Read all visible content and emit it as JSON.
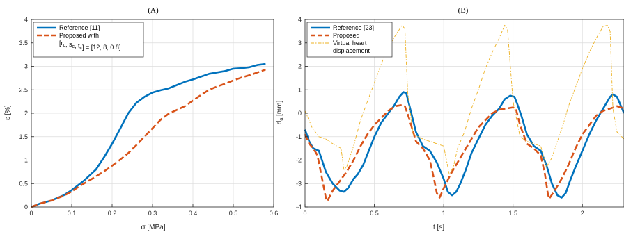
{
  "chart_data": [
    {
      "type": "line",
      "title": "(A)",
      "xlabel": "σ [MPa]",
      "ylabel": "ε [%]",
      "xlim": [
        0,
        0.6
      ],
      "ylim": [
        0,
        4
      ],
      "xticks": [
        0,
        0.1,
        0.2,
        0.3,
        0.4,
        0.5,
        0.6
      ],
      "yticks": [
        0,
        0.5,
        1,
        1.5,
        2,
        2.5,
        3,
        3.5,
        4
      ],
      "xtick_labels": [
        "0",
        "0.1",
        "0.2",
        "0.3",
        "0.4",
        "0.5",
        "0.6"
      ],
      "ytick_labels": [
        "0",
        "0.5",
        "1",
        "1.5",
        "2",
        "2.5",
        "3",
        "3.5",
        "4"
      ],
      "grid": true,
      "legend_position": "top-left",
      "series": [
        {
          "name": "Reference [11]",
          "color": "#0072BD",
          "style": "solid",
          "x": [
            0,
            0.02,
            0.05,
            0.08,
            0.1,
            0.13,
            0.16,
            0.18,
            0.2,
            0.22,
            0.24,
            0.26,
            0.28,
            0.3,
            0.32,
            0.34,
            0.36,
            0.38,
            0.4,
            0.42,
            0.44,
            0.46,
            0.48,
            0.5,
            0.52,
            0.54,
            0.56,
            0.58
          ],
          "y": [
            0,
            0.07,
            0.14,
            0.25,
            0.36,
            0.56,
            0.8,
            1.06,
            1.35,
            1.67,
            2.0,
            2.22,
            2.35,
            2.44,
            2.49,
            2.53,
            2.6,
            2.67,
            2.72,
            2.78,
            2.84,
            2.87,
            2.9,
            2.95,
            2.96,
            2.98,
            3.03,
            3.05
          ]
        },
        {
          "name": "Proposed with",
          "name_line2": "[r_c, s_c, t_c] = [12, 8, 0.8]",
          "color": "#D95319",
          "style": "dashed",
          "x": [
            0,
            0.02,
            0.05,
            0.08,
            0.1,
            0.12,
            0.15,
            0.18,
            0.2,
            0.22,
            0.24,
            0.26,
            0.28,
            0.3,
            0.32,
            0.34,
            0.36,
            0.38,
            0.4,
            0.42,
            0.44,
            0.46,
            0.48,
            0.5,
            0.52,
            0.54,
            0.56,
            0.58
          ],
          "y": [
            0,
            0.07,
            0.14,
            0.24,
            0.33,
            0.45,
            0.6,
            0.76,
            0.88,
            1.01,
            1.15,
            1.32,
            1.5,
            1.68,
            1.86,
            1.99,
            2.07,
            2.15,
            2.27,
            2.39,
            2.5,
            2.57,
            2.63,
            2.7,
            2.76,
            2.81,
            2.87,
            2.93
          ]
        }
      ]
    },
    {
      "type": "line",
      "title": "(B)",
      "xlabel": "t [s]",
      "ylabel": "d_a [mm]",
      "xlim": [
        0,
        2.3
      ],
      "ylim": [
        -4,
        4
      ],
      "xticks": [
        0,
        0.5,
        1,
        1.5,
        2
      ],
      "yticks": [
        -4,
        -3,
        -2,
        -1,
        0,
        1,
        2,
        3,
        4
      ],
      "xtick_labels": [
        "0",
        "0.5",
        "1",
        "1.5",
        "2"
      ],
      "ytick_labels": [
        "-4",
        "-3",
        "-2",
        "-1",
        "0",
        "1",
        "2",
        "3",
        "4"
      ],
      "grid": true,
      "legend_position": "top-left",
      "series": [
        {
          "name": "Reference [23]",
          "color": "#0072BD",
          "style": "solid",
          "x": [
            0,
            0.03,
            0.06,
            0.1,
            0.15,
            0.2,
            0.25,
            0.28,
            0.31,
            0.35,
            0.38,
            0.42,
            0.46,
            0.5,
            0.55,
            0.6,
            0.64,
            0.68,
            0.71,
            0.73,
            0.75,
            0.8,
            0.85,
            0.9,
            0.95,
            1.0,
            1.03,
            1.06,
            1.09,
            1.12,
            1.16,
            1.2,
            1.25,
            1.3,
            1.35,
            1.4,
            1.44,
            1.48,
            1.51,
            1.53,
            1.56,
            1.6,
            1.65,
            1.7,
            1.74,
            1.78,
            1.82,
            1.85,
            1.88,
            1.91,
            1.95,
            2.0,
            2.05,
            2.1,
            2.15,
            2.2,
            2.22,
            2.25,
            2.3
          ],
          "y": [
            -0.7,
            -1.2,
            -1.5,
            -1.6,
            -2.5,
            -3.0,
            -3.3,
            -3.35,
            -3.2,
            -2.8,
            -2.6,
            -2.2,
            -1.6,
            -1.0,
            -0.4,
            0.0,
            0.3,
            0.7,
            0.9,
            0.85,
            0.4,
            -0.8,
            -1.4,
            -1.6,
            -2.1,
            -2.8,
            -3.35,
            -3.5,
            -3.35,
            -3.0,
            -2.4,
            -1.7,
            -1.1,
            -0.5,
            -0.1,
            0.2,
            0.6,
            0.75,
            0.7,
            0.4,
            -0.1,
            -0.9,
            -1.4,
            -1.6,
            -2.2,
            -3.0,
            -3.5,
            -3.6,
            -3.4,
            -2.9,
            -2.3,
            -1.6,
            -0.9,
            -0.3,
            0.2,
            0.7,
            0.8,
            0.7,
            0.0
          ]
        },
        {
          "name": "Proposed",
          "color": "#D95319",
          "style": "dashed",
          "x": [
            0,
            0.03,
            0.06,
            0.09,
            0.11,
            0.13,
            0.15,
            0.16,
            0.2,
            0.25,
            0.3,
            0.35,
            0.4,
            0.45,
            0.5,
            0.55,
            0.6,
            0.65,
            0.7,
            0.72,
            0.75,
            0.8,
            0.85,
            0.9,
            0.93,
            0.95,
            0.97,
            1.0,
            1.05,
            1.1,
            1.15,
            1.2,
            1.25,
            1.3,
            1.35,
            1.4,
            1.45,
            1.5,
            1.52,
            1.55,
            1.6,
            1.65,
            1.7,
            1.73,
            1.75,
            1.76,
            1.8,
            1.85,
            1.9,
            1.95,
            2.0,
            2.05,
            2.1,
            2.15,
            2.2,
            2.25,
            2.3
          ],
          "y": [
            -0.9,
            -1.3,
            -1.5,
            -1.8,
            -2.4,
            -3.0,
            -3.6,
            -3.75,
            -3.3,
            -2.9,
            -2.5,
            -2.0,
            -1.4,
            -0.9,
            -0.5,
            -0.2,
            0.1,
            0.3,
            0.35,
            0.3,
            -0.2,
            -1.2,
            -1.5,
            -2.0,
            -2.8,
            -3.4,
            -3.6,
            -3.2,
            -2.6,
            -2.1,
            -1.6,
            -1.1,
            -0.6,
            -0.3,
            0.0,
            0.15,
            0.2,
            0.25,
            0.2,
            -0.5,
            -1.3,
            -1.5,
            -1.8,
            -2.6,
            -3.4,
            -3.65,
            -3.3,
            -2.8,
            -2.2,
            -1.5,
            -0.9,
            -0.5,
            -0.1,
            0.1,
            0.2,
            0.3,
            0.2
          ]
        },
        {
          "name": "Virtual heart",
          "name_line2": "displacement",
          "color": "#EDB120",
          "style": "dashdot",
          "x": [
            0,
            0.05,
            0.1,
            0.15,
            0.2,
            0.26,
            0.28,
            0.3,
            0.35,
            0.4,
            0.45,
            0.5,
            0.55,
            0.6,
            0.65,
            0.7,
            0.72,
            0.74,
            0.78,
            0.85,
            0.9,
            0.95,
            1.0,
            1.04,
            1.07,
            1.1,
            1.15,
            1.2,
            1.25,
            1.3,
            1.35,
            1.4,
            1.44,
            1.46,
            1.5,
            1.55,
            1.6,
            1.65,
            1.7,
            1.74,
            1.78,
            1.82,
            1.86,
            1.9,
            1.95,
            2.0,
            2.05,
            2.1,
            2.15,
            2.18,
            2.2,
            2.22,
            2.25,
            2.3
          ],
          "y": [
            0.1,
            -0.6,
            -1.0,
            -1.1,
            -1.3,
            -1.5,
            -2.4,
            -2.3,
            -1.4,
            -0.3,
            0.5,
            1.3,
            2.1,
            2.8,
            3.3,
            3.75,
            3.6,
            0.9,
            -0.9,
            -1.1,
            -1.2,
            -1.3,
            -1.4,
            -2.6,
            -2.3,
            -1.5,
            -0.8,
            0.2,
            1.0,
            1.9,
            2.6,
            3.2,
            3.75,
            3.6,
            0.5,
            -1.0,
            -1.2,
            -1.3,
            -1.4,
            -2.3,
            -1.9,
            -1.2,
            -0.5,
            0.3,
            1.1,
            1.9,
            2.6,
            3.2,
            3.7,
            3.75,
            3.5,
            0.2,
            -0.8,
            -1.1
          ]
        }
      ]
    }
  ]
}
